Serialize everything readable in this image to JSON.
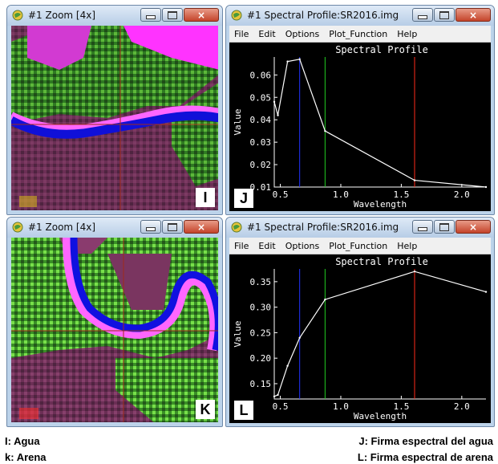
{
  "windows": {
    "zoom_top": {
      "title": "#1 Zoom [4x]",
      "panel_label": "I"
    },
    "zoom_bottom": {
      "title": "#1 Zoom [4x]",
      "panel_label": "K"
    },
    "profile_top": {
      "title": "#1 Spectral Profile:SR2016.img",
      "panel_label": "J"
    },
    "profile_bottom": {
      "title": "#1 Spectral Profile:SR2016.img",
      "panel_label": "L"
    }
  },
  "menu": [
    "File",
    "Edit",
    "Options",
    "Plot_Function",
    "Help"
  ],
  "window_buttons": {
    "close_glyph": "×"
  },
  "captions": {
    "left_1": "I: Agua",
    "left_2": "k: Arena",
    "right_1": "J: Firma espectral del agua",
    "right_2": "L: Firma espectral de arena"
  },
  "colors": {
    "titlebar": "#bcd3ea",
    "plot_bg": "#000000",
    "line_blue": "#2233ff",
    "line_green": "#22cc22",
    "line_red": "#ff2a1a"
  },
  "chart_data": [
    {
      "type": "line",
      "title": "Spectral Profile",
      "xlabel": "Wavelength",
      "ylabel": "Value",
      "xlim": [
        0.45,
        2.2
      ],
      "ylim": [
        0.01,
        0.068
      ],
      "xticks": [
        "0.5",
        "1.0",
        "1.5",
        "2.0"
      ],
      "yticks": [
        "0.01",
        "0.02",
        "0.03",
        "0.04",
        "0.05",
        "0.06"
      ],
      "x": [
        0.45,
        0.48,
        0.56,
        0.66,
        0.87,
        1.61,
        2.2
      ],
      "y": [
        0.048,
        0.042,
        0.066,
        0.067,
        0.035,
        0.013,
        0.01
      ],
      "markers": [
        0.66,
        0.87,
        1.61
      ]
    },
    {
      "type": "line",
      "title": "Spectral Profile",
      "xlabel": "Wavelength",
      "ylabel": "Value",
      "xlim": [
        0.45,
        2.2
      ],
      "ylim": [
        0.12,
        0.375
      ],
      "xticks": [
        "0.5",
        "1.0",
        "1.5",
        "2.0"
      ],
      "yticks": [
        "0.15",
        "0.20",
        "0.25",
        "0.30",
        "0.35"
      ],
      "x": [
        0.45,
        0.48,
        0.56,
        0.66,
        0.87,
        1.61,
        2.2
      ],
      "y": [
        0.125,
        0.128,
        0.185,
        0.24,
        0.315,
        0.37,
        0.33
      ],
      "markers": [
        0.66,
        0.87,
        1.61
      ]
    }
  ]
}
